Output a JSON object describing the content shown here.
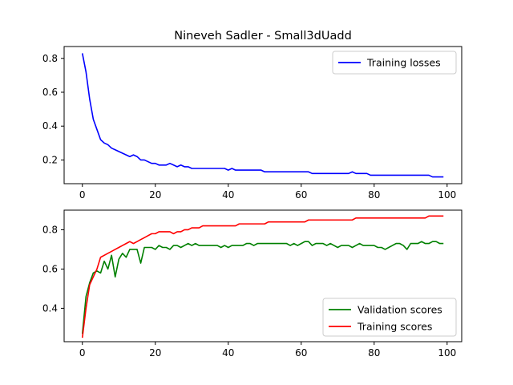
{
  "chart_data": [
    {
      "type": "line",
      "title": "Nineveh Sadler - Small3dUadd",
      "xlabel": "",
      "ylabel": "",
      "xlim": [
        -5,
        104
      ],
      "ylim": [
        0.06,
        0.87
      ],
      "xticks": [
        0,
        20,
        40,
        60,
        80,
        100
      ],
      "yticks": [
        0.2,
        0.4,
        0.6,
        0.8
      ],
      "x_tick_labels": [
        "0",
        "20",
        "40",
        "60",
        "80",
        "100"
      ],
      "y_tick_labels": [
        "0.2",
        "0.4",
        "0.6",
        "0.8"
      ],
      "grid": false,
      "legend_position": "upper right",
      "series": [
        {
          "name": "Training losses",
          "color": "#0000ff",
          "values": [
            0.83,
            0.72,
            0.56,
            0.44,
            0.38,
            0.32,
            0.3,
            0.29,
            0.27,
            0.26,
            0.25,
            0.24,
            0.23,
            0.22,
            0.23,
            0.22,
            0.2,
            0.2,
            0.19,
            0.18,
            0.18,
            0.17,
            0.17,
            0.17,
            0.18,
            0.17,
            0.16,
            0.17,
            0.16,
            0.16,
            0.15,
            0.15,
            0.15,
            0.15,
            0.15,
            0.15,
            0.15,
            0.15,
            0.15,
            0.15,
            0.14,
            0.15,
            0.14,
            0.14,
            0.14,
            0.14,
            0.14,
            0.14,
            0.14,
            0.14,
            0.13,
            0.13,
            0.13,
            0.13,
            0.13,
            0.13,
            0.13,
            0.13,
            0.13,
            0.13,
            0.13,
            0.13,
            0.13,
            0.12,
            0.12,
            0.12,
            0.12,
            0.12,
            0.12,
            0.12,
            0.12,
            0.12,
            0.12,
            0.12,
            0.13,
            0.12,
            0.12,
            0.12,
            0.12,
            0.11,
            0.11,
            0.11,
            0.11,
            0.11,
            0.11,
            0.11,
            0.11,
            0.11,
            0.11,
            0.11,
            0.11,
            0.11,
            0.11,
            0.11,
            0.11,
            0.11,
            0.1,
            0.1,
            0.1,
            0.1
          ]
        }
      ]
    },
    {
      "type": "line",
      "title": "",
      "xlabel": "",
      "ylabel": "",
      "xlim": [
        -5,
        104
      ],
      "ylim": [
        0.23,
        0.9
      ],
      "xticks": [
        0,
        20,
        40,
        60,
        80,
        100
      ],
      "yticks": [
        0.4,
        0.6,
        0.8
      ],
      "x_tick_labels": [
        "0",
        "20",
        "40",
        "60",
        "80",
        "100"
      ],
      "y_tick_labels": [
        "0.4",
        "0.6",
        "0.8"
      ],
      "grid": false,
      "legend_position": "lower right",
      "series": [
        {
          "name": "Validation scores",
          "color": "#008000",
          "values": [
            0.27,
            0.46,
            0.53,
            0.58,
            0.59,
            0.58,
            0.64,
            0.6,
            0.67,
            0.56,
            0.65,
            0.68,
            0.66,
            0.7,
            0.7,
            0.7,
            0.63,
            0.71,
            0.71,
            0.71,
            0.7,
            0.72,
            0.71,
            0.71,
            0.7,
            0.72,
            0.72,
            0.71,
            0.72,
            0.73,
            0.72,
            0.73,
            0.72,
            0.72,
            0.72,
            0.72,
            0.72,
            0.72,
            0.71,
            0.72,
            0.71,
            0.72,
            0.72,
            0.72,
            0.72,
            0.73,
            0.73,
            0.72,
            0.73,
            0.73,
            0.73,
            0.73,
            0.73,
            0.73,
            0.73,
            0.73,
            0.73,
            0.72,
            0.73,
            0.72,
            0.73,
            0.74,
            0.74,
            0.72,
            0.73,
            0.73,
            0.73,
            0.72,
            0.73,
            0.72,
            0.71,
            0.72,
            0.72,
            0.72,
            0.71,
            0.72,
            0.73,
            0.72,
            0.72,
            0.72,
            0.72,
            0.71,
            0.71,
            0.7,
            0.71,
            0.72,
            0.73,
            0.73,
            0.72,
            0.7,
            0.73,
            0.73,
            0.73,
            0.74,
            0.73,
            0.73,
            0.74,
            0.74,
            0.73,
            0.73
          ]
        },
        {
          "name": "Training scores",
          "color": "#ff0000",
          "values": [
            0.25,
            0.4,
            0.52,
            0.56,
            0.6,
            0.66,
            0.67,
            0.68,
            0.69,
            0.7,
            0.71,
            0.72,
            0.73,
            0.74,
            0.73,
            0.74,
            0.75,
            0.76,
            0.77,
            0.78,
            0.78,
            0.79,
            0.79,
            0.79,
            0.79,
            0.78,
            0.79,
            0.79,
            0.8,
            0.8,
            0.81,
            0.81,
            0.81,
            0.82,
            0.82,
            0.82,
            0.82,
            0.82,
            0.82,
            0.82,
            0.82,
            0.82,
            0.82,
            0.83,
            0.83,
            0.83,
            0.83,
            0.83,
            0.83,
            0.83,
            0.83,
            0.84,
            0.84,
            0.84,
            0.84,
            0.84,
            0.84,
            0.84,
            0.84,
            0.84,
            0.84,
            0.84,
            0.85,
            0.85,
            0.85,
            0.85,
            0.85,
            0.85,
            0.85,
            0.85,
            0.85,
            0.85,
            0.85,
            0.85,
            0.85,
            0.86,
            0.86,
            0.86,
            0.86,
            0.86,
            0.86,
            0.86,
            0.86,
            0.86,
            0.86,
            0.86,
            0.86,
            0.86,
            0.86,
            0.86,
            0.86,
            0.86,
            0.86,
            0.86,
            0.86,
            0.87,
            0.87,
            0.87,
            0.87,
            0.87
          ]
        }
      ]
    }
  ]
}
